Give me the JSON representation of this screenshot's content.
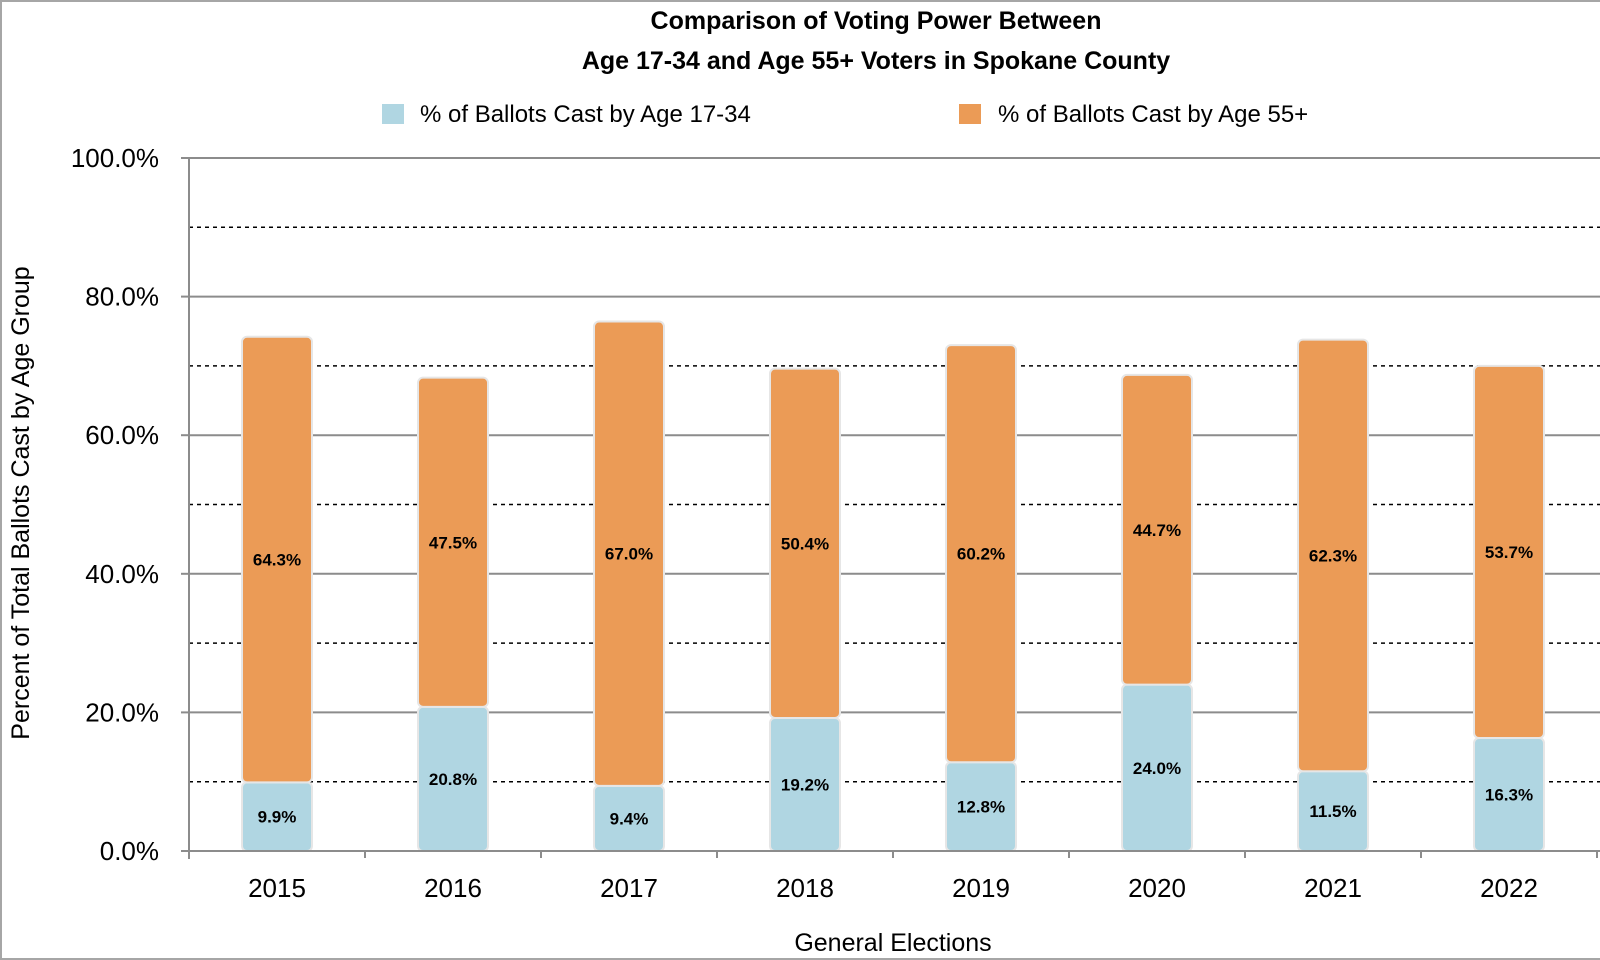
{
  "chart_data": {
    "type": "bar",
    "stacked": true,
    "title": [
      "Comparison of Voting Power Between",
      "Age 17-34 and Age 55+ Voters in Spokane County"
    ],
    "xlabel": "General Elections",
    "ylabel": "Percent of Total Ballots Cast by Age Group",
    "categories": [
      "2015",
      "2016",
      "2017",
      "2018",
      "2019",
      "2020",
      "2021",
      "2022"
    ],
    "series": [
      {
        "name": "% of Ballots Cast by Age 17-34",
        "color": "#b0d6e2",
        "values": [
          9.9,
          20.8,
          9.4,
          19.2,
          12.8,
          24.0,
          11.5,
          16.3
        ],
        "labels": [
          "9.9%",
          "20.8%",
          "9.4%",
          "19.2%",
          "12.8%",
          "24.0%",
          "11.5%",
          "16.3%"
        ]
      },
      {
        "name": "% of Ballots Cast by Age 55+",
        "color": "#eb9b56",
        "values": [
          64.3,
          47.5,
          67.0,
          50.4,
          60.2,
          44.7,
          62.3,
          53.7
        ],
        "labels": [
          "64.3%",
          "47.5%",
          "67.0%",
          "50.4%",
          "60.2%",
          "44.7%",
          "62.3%",
          "53.7%"
        ]
      }
    ],
    "ylim": [
      0,
      100
    ],
    "yticks": [
      0,
      20,
      40,
      60,
      80,
      100
    ],
    "ytick_labels": [
      "0.0%",
      "20.0%",
      "40.0%",
      "60.0%",
      "80.0%",
      "100.0%"
    ],
    "major_gridlines": [
      20,
      40,
      60,
      80,
      100
    ],
    "minor_gridlines_dotted": [
      10,
      30,
      50,
      70,
      90
    ],
    "grid": true,
    "legend_position": "top-center"
  }
}
